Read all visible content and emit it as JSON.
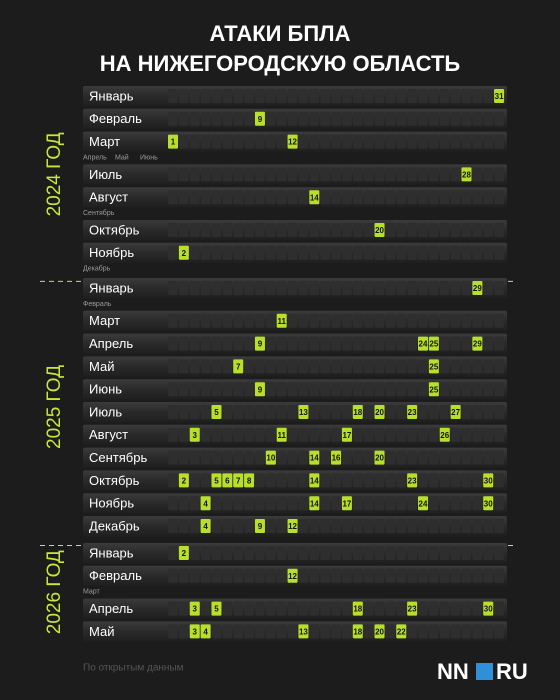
{
  "header": {
    "title_line1": "АТАКИ БПЛА",
    "title_line2": "НА НИЖЕГОРОДСКУЮ ОБЛАСТЬ"
  },
  "years": [
    {
      "label": "2024 ГОД",
      "rows": [
        {
          "month": "Январь",
          "days": [
            31
          ]
        },
        {
          "month": "Февраль",
          "days": [
            9
          ]
        },
        {
          "month": "Март",
          "days": [
            1,
            12
          ]
        },
        {
          "skipped": [
            "Апрель",
            "Май",
            "Июнь"
          ]
        },
        {
          "month": "Июль",
          "days": [
            28
          ]
        },
        {
          "month": "Август",
          "days": [
            14
          ]
        },
        {
          "skipped": [
            "Сентябрь"
          ]
        },
        {
          "month": "Октябрь",
          "days": [
            20
          ]
        },
        {
          "month": "Ноябрь",
          "days": [
            2
          ]
        },
        {
          "skipped": [
            "Декабрь"
          ]
        }
      ]
    },
    {
      "label": "2025 ГОД",
      "rows": [
        {
          "month": "Январь",
          "days": [
            29
          ]
        },
        {
          "skipped": [
            "Февраль"
          ]
        },
        {
          "month": "Март",
          "days": [
            11
          ]
        },
        {
          "month": "Апрель",
          "days": [
            9,
            24,
            25,
            29
          ]
        },
        {
          "month": "Май",
          "days": [
            7,
            25
          ]
        },
        {
          "month": "Июнь",
          "days": [
            9,
            25
          ]
        },
        {
          "month": "Июль",
          "days": [
            5,
            13,
            18,
            20,
            23,
            27
          ]
        },
        {
          "month": "Август",
          "days": [
            3,
            11,
            17,
            26
          ]
        },
        {
          "month": "Сентябрь",
          "days": [
            10,
            14,
            16,
            20
          ]
        },
        {
          "month": "Октябрь",
          "days": [
            2,
            5,
            6,
            7,
            8,
            14,
            23,
            30
          ]
        },
        {
          "month": "Ноябрь",
          "days": [
            4,
            14,
            17,
            24,
            30
          ]
        },
        {
          "month": "Декабрь",
          "days": [
            4,
            9,
            12
          ]
        }
      ]
    },
    {
      "label": "2026 ГОД",
      "rows": [
        {
          "month": "Январь",
          "days": [
            2
          ]
        },
        {
          "month": "Февраль",
          "days": [
            12
          ]
        },
        {
          "skipped": [
            "Март"
          ]
        },
        {
          "month": "Апрель",
          "days": [
            3,
            5,
            18,
            23,
            30
          ]
        },
        {
          "month": "Май",
          "days": [
            3,
            4,
            13,
            18,
            20,
            22
          ]
        }
      ]
    }
  ],
  "footer": {
    "source": "По открытым данным",
    "logo_left": "NN",
    "logo_right": "RU"
  }
}
